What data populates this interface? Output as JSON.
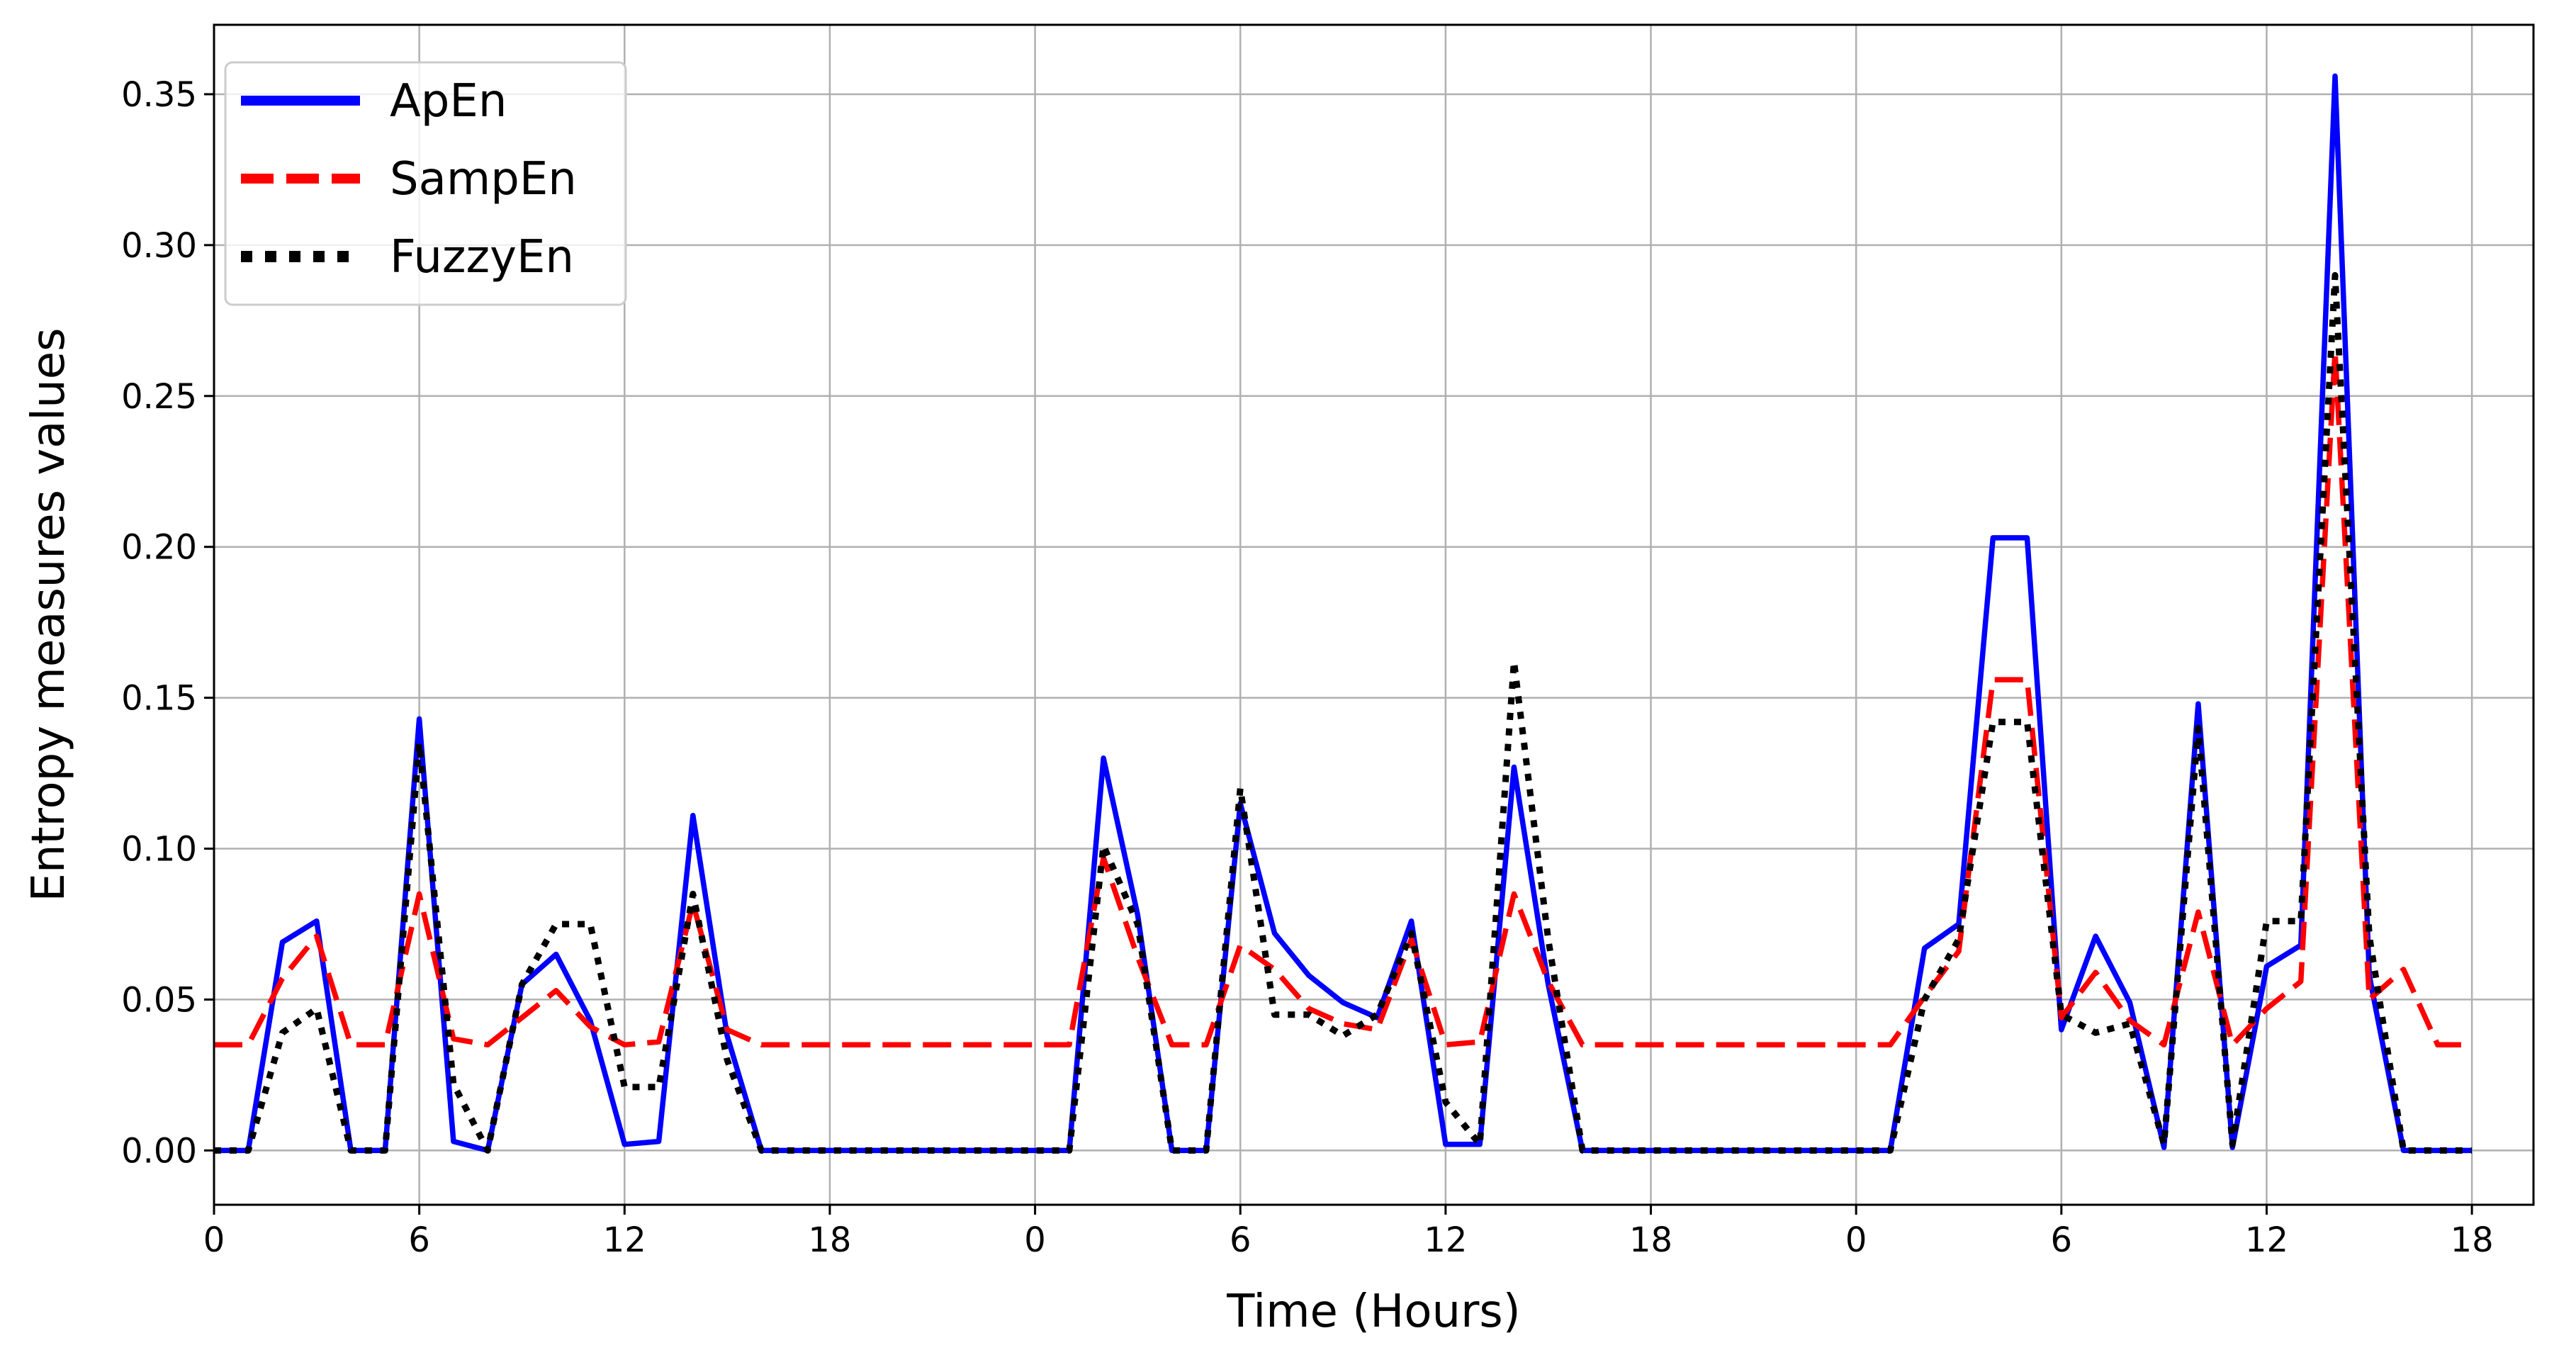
{
  "chart_data": {
    "type": "line",
    "title": "",
    "xlabel": "Time (Hours)",
    "ylabel": "Entropy measures values",
    "xlim": [
      0,
      67.8
    ],
    "ylim": [
      -0.018,
      0.373
    ],
    "x_ticks": [
      0,
      6,
      12,
      18,
      24,
      30,
      36,
      42,
      48,
      54,
      60,
      66
    ],
    "x_tick_labels": [
      "0",
      "6",
      "12",
      "18",
      "0",
      "6",
      "12",
      "18",
      "0",
      "6",
      "12",
      "18"
    ],
    "y_ticks": [
      0,
      0.05,
      0.1,
      0.15,
      0.2,
      0.25,
      0.3,
      0.35
    ],
    "y_tick_labels": [
      "0.00",
      "0.05",
      "0.10",
      "0.15",
      "0.20",
      "0.25",
      "0.30",
      "0.35"
    ],
    "grid": true,
    "legend_position": "top-left",
    "x": [
      0,
      1,
      2,
      3,
      4,
      5,
      6,
      7,
      8,
      9,
      10,
      11,
      12,
      13,
      14,
      15,
      16,
      17,
      18,
      19,
      20,
      21,
      22,
      23,
      24,
      25,
      26,
      27,
      28,
      29,
      30,
      31,
      32,
      33,
      34,
      35,
      36,
      37,
      38,
      39,
      40,
      41,
      42,
      43,
      44,
      45,
      46,
      47,
      48,
      49,
      50,
      51,
      52,
      53,
      54,
      55,
      56,
      57,
      58,
      59,
      60,
      61,
      62,
      63,
      64,
      65,
      66
    ],
    "series": [
      {
        "name": "ApEn",
        "color": "#0000ff",
        "style": "solid",
        "values": [
          0.0,
          0.0,
          0.069,
          0.076,
          0.0,
          0.0,
          0.143,
          0.003,
          0.0,
          0.055,
          0.065,
          0.043,
          0.002,
          0.003,
          0.111,
          0.038,
          0.0,
          0.0,
          0.0,
          0.0,
          0.0,
          0.0,
          0.0,
          0.0,
          0.0,
          0.0,
          0.13,
          0.078,
          0.0,
          0.0,
          0.115,
          0.072,
          0.058,
          0.049,
          0.044,
          0.076,
          0.002,
          0.002,
          0.127,
          0.055,
          0.0,
          0.0,
          0.0,
          0.0,
          0.0,
          0.0,
          0.0,
          0.0,
          0.0,
          0.0,
          0.067,
          0.075,
          0.203,
          0.203,
          0.04,
          0.071,
          0.049,
          0.001,
          0.148,
          0.001,
          0.061,
          0.068,
          0.356,
          0.058,
          0.0,
          0.0,
          0.0
        ]
      },
      {
        "name": "SampEn",
        "color": "#ff0000",
        "style": "dashed",
        "values": [
          0.035,
          0.035,
          0.057,
          0.071,
          0.035,
          0.035,
          0.085,
          0.037,
          0.035,
          0.044,
          0.053,
          0.041,
          0.035,
          0.036,
          0.082,
          0.04,
          0.035,
          0.035,
          0.035,
          0.035,
          0.035,
          0.035,
          0.035,
          0.035,
          0.035,
          0.035,
          0.097,
          0.064,
          0.035,
          0.035,
          0.068,
          0.06,
          0.047,
          0.042,
          0.04,
          0.07,
          0.035,
          0.036,
          0.085,
          0.056,
          0.035,
          0.035,
          0.035,
          0.035,
          0.035,
          0.035,
          0.035,
          0.035,
          0.035,
          0.035,
          0.051,
          0.066,
          0.156,
          0.156,
          0.044,
          0.059,
          0.043,
          0.035,
          0.079,
          0.035,
          0.047,
          0.056,
          0.265,
          0.05,
          0.06,
          0.035,
          0.035
        ]
      },
      {
        "name": "FuzzyEn",
        "color": "#000000",
        "style": "dotted",
        "values": [
          0.0,
          0.0,
          0.039,
          0.047,
          0.0,
          0.0,
          0.135,
          0.022,
          0.0,
          0.055,
          0.075,
          0.075,
          0.021,
          0.021,
          0.085,
          0.03,
          0.0,
          0.0,
          0.0,
          0.0,
          0.0,
          0.0,
          0.0,
          0.0,
          0.0,
          0.0,
          0.101,
          0.075,
          0.0,
          0.0,
          0.12,
          0.045,
          0.045,
          0.038,
          0.045,
          0.072,
          0.016,
          0.002,
          0.162,
          0.07,
          0.0,
          0.0,
          0.0,
          0.0,
          0.0,
          0.0,
          0.0,
          0.0,
          0.0,
          0.0,
          0.05,
          0.07,
          0.142,
          0.142,
          0.045,
          0.039,
          0.042,
          0.002,
          0.14,
          0.002,
          0.076,
          0.076,
          0.29,
          0.071,
          0.0,
          0.0,
          0.0
        ]
      }
    ]
  }
}
